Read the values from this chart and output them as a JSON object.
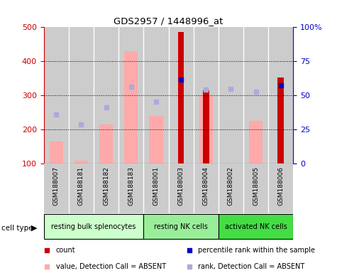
{
  "title": "GDS2957 / 1448996_at",
  "samples": [
    "GSM188007",
    "GSM188181",
    "GSM188182",
    "GSM188183",
    "GSM188001",
    "GSM188003",
    "GSM188004",
    "GSM188002",
    "GSM188005",
    "GSM188006"
  ],
  "cell_types": [
    {
      "label": "resting bulk splenocytes",
      "start": 0,
      "end": 4,
      "color": "#ccffcc"
    },
    {
      "label": "resting NK cells",
      "start": 4,
      "end": 7,
      "color": "#99ee99"
    },
    {
      "label": "activated NK cells",
      "start": 7,
      "end": 10,
      "color": "#44dd44"
    }
  ],
  "pink_bars": [
    165,
    110,
    215,
    430,
    240,
    0,
    300,
    0,
    225,
    0
  ],
  "red_bars": [
    0,
    0,
    0,
    0,
    0,
    487,
    315,
    0,
    0,
    352
  ],
  "blue_squares": [
    245,
    215,
    265,
    325,
    282,
    347,
    318,
    320,
    312,
    330
  ],
  "absent_rank": [
    true,
    true,
    true,
    true,
    true,
    false,
    true,
    true,
    true,
    false
  ],
  "ylim_left": [
    100,
    500
  ],
  "ylim_right": [
    0,
    100
  ],
  "yticks_left": [
    100,
    200,
    300,
    400,
    500
  ],
  "yticks_right": [
    0,
    25,
    50,
    75,
    100
  ],
  "ytick_labels_right": [
    "0",
    "25",
    "50",
    "75",
    "100%"
  ],
  "left_axis_color": "#cc0000",
  "right_axis_color": "#0000cc",
  "pink_color": "#ffaaaa",
  "red_color": "#cc0000",
  "blue_sq_color": "#aaaadd",
  "dark_blue_sq_color": "#0000cc",
  "grid_vals": [
    200,
    300,
    400
  ],
  "sample_bg_color": "#cccccc",
  "legend_labels": [
    "count",
    "percentile rank within the sample",
    "value, Detection Call = ABSENT",
    "rank, Detection Call = ABSENT"
  ],
  "legend_colors": [
    "#cc0000",
    "#0000cc",
    "#ffaaaa",
    "#aaaadd"
  ]
}
